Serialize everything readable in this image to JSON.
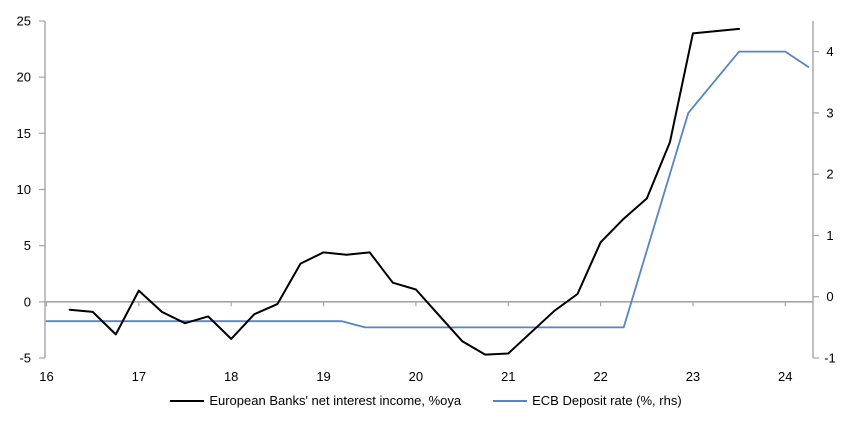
{
  "page": {
    "background": "#ffffff"
  },
  "chart_data": {
    "type": "line",
    "title": "",
    "x_axis": {
      "min": 16,
      "max": 24.3,
      "ticks": [
        16,
        17,
        18,
        19,
        20,
        21,
        22,
        23,
        24
      ]
    },
    "left_axis": {
      "min": -5,
      "max": 25,
      "ticks": [
        -5,
        0,
        5,
        10,
        15,
        20,
        25
      ]
    },
    "right_axis": {
      "min": -1,
      "max": 4.5,
      "ticks": [
        -1,
        0,
        1,
        2,
        3,
        4
      ]
    },
    "grid": "zero-line-only",
    "legend_position": "bottom-center",
    "colors": {
      "axis": "#a6a6a6",
      "zero_line": "#a6a6a6",
      "text": "#000000"
    },
    "series": [
      {
        "name": "European Banks' net interest income, %oya",
        "axis": "left",
        "color": "#000000",
        "stroke_width": 2,
        "points": [
          [
            16.25,
            -0.7
          ],
          [
            16.5,
            -0.9
          ],
          [
            16.75,
            -2.9
          ],
          [
            17,
            1.0
          ],
          [
            17.25,
            -0.9
          ],
          [
            17.5,
            -1.9
          ],
          [
            17.75,
            -1.3
          ],
          [
            18,
            -3.3
          ],
          [
            18.25,
            -1.1
          ],
          [
            18.5,
            -0.2
          ],
          [
            18.75,
            3.4
          ],
          [
            19,
            4.4
          ],
          [
            19.25,
            4.2
          ],
          [
            19.5,
            4.4
          ],
          [
            19.75,
            1.7
          ],
          [
            20,
            1.1
          ],
          [
            20.25,
            -1.2
          ],
          [
            20.5,
            -3.5
          ],
          [
            20.75,
            -4.7
          ],
          [
            21,
            -4.6
          ],
          [
            21.25,
            -2.7
          ],
          [
            21.5,
            -0.8
          ],
          [
            21.75,
            0.7
          ],
          [
            22,
            5.3
          ],
          [
            22.25,
            7.4
          ],
          [
            22.5,
            9.2
          ],
          [
            22.75,
            14.2
          ],
          [
            23,
            23.9
          ],
          [
            23.25,
            24.1
          ],
          [
            23.5,
            24.3
          ]
        ]
      },
      {
        "name": "ECB Deposit rate (%, rhs)",
        "axis": "right",
        "color": "#5585c2",
        "stroke_width": 1.8,
        "points": [
          [
            16,
            -0.4
          ],
          [
            19.2,
            -0.4
          ],
          [
            19.45,
            -0.5
          ],
          [
            22.25,
            -0.5
          ],
          [
            22.95,
            3.0
          ],
          [
            23.5,
            4.0
          ],
          [
            24,
            4.0
          ],
          [
            24.25,
            3.75
          ]
        ]
      }
    ]
  }
}
